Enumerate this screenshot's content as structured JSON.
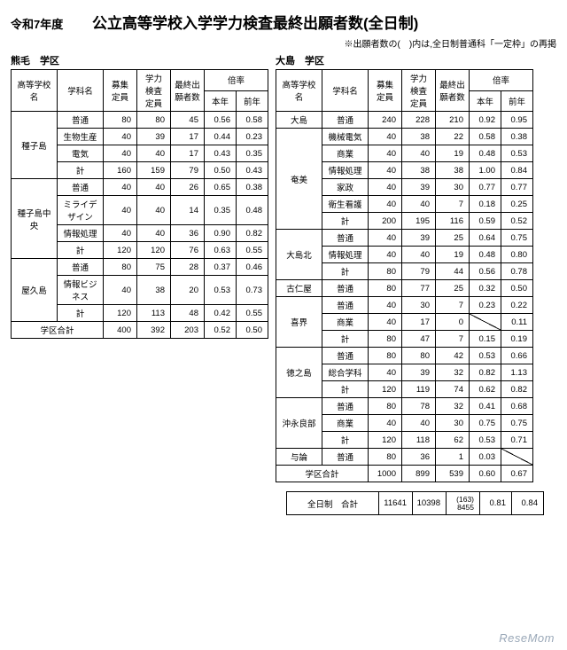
{
  "header": {
    "year": "令和7年度",
    "title": "公立高等学校入学学力検査最終出願者数(全日制)",
    "note": "※出願者数の(　)内は,全日制普通科「一定枠」の再掲"
  },
  "labels": {
    "district_left": "熊毛　学区",
    "district_right": "大島　学区",
    "school": "高等学校名",
    "dept": "学科名",
    "capacity": "募集\n定員",
    "exam_cap": "学力\n検査\n定員",
    "applicants": "最終出\n願者数",
    "rate": "倍率",
    "this_year": "本年",
    "prev_year": "前年",
    "subtotal": "計",
    "district_total": "学区合計",
    "grand_total": "全日制　合計"
  },
  "left": {
    "rows": [
      {
        "school": "種子島",
        "dept": "普通",
        "c": "80",
        "e": "80",
        "a": "45",
        "r1": "0.56",
        "r2": "0.58",
        "school_rowspan": 4
      },
      {
        "dept": "生物生産",
        "c": "40",
        "e": "39",
        "a": "17",
        "r1": "0.44",
        "r2": "0.23"
      },
      {
        "dept": "電気",
        "c": "40",
        "e": "40",
        "a": "17",
        "r1": "0.43",
        "r2": "0.35"
      },
      {
        "dept": "計",
        "c": "160",
        "e": "159",
        "a": "79",
        "r1": "0.50",
        "r2": "0.43"
      },
      {
        "school": "種子島中央",
        "dept": "普通",
        "c": "40",
        "e": "40",
        "a": "26",
        "r1": "0.65",
        "r2": "0.38",
        "school_rowspan": 4
      },
      {
        "dept": "ミライデザイン",
        "c": "40",
        "e": "40",
        "a": "14",
        "r1": "0.35",
        "r2": "0.48"
      },
      {
        "dept": "情報処理",
        "c": "40",
        "e": "40",
        "a": "36",
        "r1": "0.90",
        "r2": "0.82"
      },
      {
        "dept": "計",
        "c": "120",
        "e": "120",
        "a": "76",
        "r1": "0.63",
        "r2": "0.55"
      },
      {
        "school": "屋久島",
        "dept": "普通",
        "c": "80",
        "e": "75",
        "a": "28",
        "r1": "0.37",
        "r2": "0.46",
        "school_rowspan": 3
      },
      {
        "dept": "情報ビジネス",
        "c": "40",
        "e": "38",
        "a": "20",
        "r1": "0.53",
        "r2": "0.73"
      },
      {
        "dept": "計",
        "c": "120",
        "e": "113",
        "a": "48",
        "r1": "0.42",
        "r2": "0.55"
      }
    ],
    "total": {
      "c": "400",
      "e": "392",
      "a": "203",
      "r1": "0.52",
      "r2": "0.50"
    }
  },
  "right": {
    "rows": [
      {
        "school": "大島",
        "dept": "普通",
        "c": "240",
        "e": "228",
        "a": "210",
        "r1": "0.92",
        "r2": "0.95",
        "school_rowspan": 1
      },
      {
        "school": "奄美",
        "dept": "機械電気",
        "c": "40",
        "e": "38",
        "a": "22",
        "r1": "0.58",
        "r2": "0.38",
        "school_rowspan": 6
      },
      {
        "dept": "商業",
        "c": "40",
        "e": "40",
        "a": "19",
        "r1": "0.48",
        "r2": "0.53"
      },
      {
        "dept": "情報処理",
        "c": "40",
        "e": "38",
        "a": "38",
        "r1": "1.00",
        "r2": "0.84"
      },
      {
        "dept": "家政",
        "c": "40",
        "e": "39",
        "a": "30",
        "r1": "0.77",
        "r2": "0.77"
      },
      {
        "dept": "衛生看護",
        "c": "40",
        "e": "40",
        "a": "7",
        "r1": "0.18",
        "r2": "0.25"
      },
      {
        "dept": "計",
        "c": "200",
        "e": "195",
        "a": "116",
        "r1": "0.59",
        "r2": "0.52"
      },
      {
        "school": "大島北",
        "dept": "普通",
        "c": "40",
        "e": "39",
        "a": "25",
        "r1": "0.64",
        "r2": "0.75",
        "school_rowspan": 3
      },
      {
        "dept": "情報処理",
        "c": "40",
        "e": "40",
        "a": "19",
        "r1": "0.48",
        "r2": "0.80"
      },
      {
        "dept": "計",
        "c": "80",
        "e": "79",
        "a": "44",
        "r1": "0.56",
        "r2": "0.78"
      },
      {
        "school": "古仁屋",
        "dept": "普通",
        "c": "80",
        "e": "77",
        "a": "25",
        "r1": "0.32",
        "r2": "0.50",
        "school_rowspan": 1
      },
      {
        "school": "喜界",
        "dept": "普通",
        "c": "40",
        "e": "30",
        "a": "7",
        "r1": "0.23",
        "r2": "0.22",
        "school_rowspan": 3
      },
      {
        "dept": "商業",
        "c": "40",
        "e": "17",
        "a": "0",
        "r1": "slash",
        "r2": "0.11"
      },
      {
        "dept": "計",
        "c": "80",
        "e": "47",
        "a": "7",
        "r1": "0.15",
        "r2": "0.19"
      },
      {
        "school": "徳之島",
        "dept": "普通",
        "c": "80",
        "e": "80",
        "a": "42",
        "r1": "0.53",
        "r2": "0.66",
        "school_rowspan": 3
      },
      {
        "dept": "総合学科",
        "c": "40",
        "e": "39",
        "a": "32",
        "r1": "0.82",
        "r2": "1.13"
      },
      {
        "dept": "計",
        "c": "120",
        "e": "119",
        "a": "74",
        "r1": "0.62",
        "r2": "0.82"
      },
      {
        "school": "沖永良部",
        "dept": "普通",
        "c": "80",
        "e": "78",
        "a": "32",
        "r1": "0.41",
        "r2": "0.68",
        "school_rowspan": 3
      },
      {
        "dept": "商業",
        "c": "40",
        "e": "40",
        "a": "30",
        "r1": "0.75",
        "r2": "0.75"
      },
      {
        "dept": "計",
        "c": "120",
        "e": "118",
        "a": "62",
        "r1": "0.53",
        "r2": "0.71"
      },
      {
        "school": "与論",
        "dept": "普通",
        "c": "80",
        "e": "36",
        "a": "1",
        "r1": "0.03",
        "r2": "slash",
        "school_rowspan": 1
      }
    ],
    "total": {
      "c": "1000",
      "e": "899",
      "a": "539",
      "r1": "0.60",
      "r2": "0.67"
    }
  },
  "grand": {
    "c": "11641",
    "e": "10398",
    "a_top": "(163)",
    "a_bot": "8455",
    "r1": "0.81",
    "r2": "0.84"
  },
  "watermark": "ReseMom"
}
